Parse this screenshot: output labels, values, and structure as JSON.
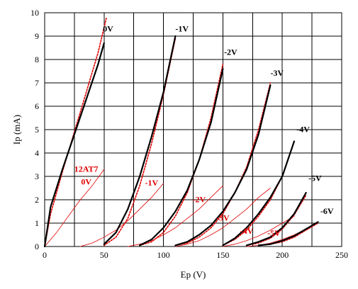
{
  "chart_data": {
    "type": "line",
    "xlabel": "Ep (V)",
    "ylabel": "Ip (mA)",
    "xlim": [
      0,
      250
    ],
    "ylim": [
      0,
      10
    ],
    "xticks": [
      "0",
      "50",
      "100",
      "150",
      "200",
      "250"
    ],
    "yticks": [
      "0",
      "1",
      "2",
      "3",
      "4",
      "5",
      "6",
      "7",
      "8",
      "9",
      "10"
    ],
    "grid": true,
    "colors": {
      "black": "#000000",
      "red": "#e00000",
      "grid": "#000000"
    },
    "series": [
      {
        "name": "0V",
        "color": "#000000",
        "style": "solid",
        "x": [
          0,
          5,
          15,
          25,
          35,
          45,
          50
        ],
        "y": [
          0,
          1.7,
          3.3,
          4.8,
          6.3,
          7.8,
          8.7
        ]
      },
      {
        "name": "-1V",
        "color": "#000000",
        "style": "solid",
        "x": [
          50,
          60,
          70,
          80,
          90,
          100,
          110
        ],
        "y": [
          0.1,
          0.6,
          1.6,
          3.0,
          4.7,
          6.6,
          9.0
        ]
      },
      {
        "name": "-2V",
        "color": "#000000",
        "style": "solid",
        "x": [
          80,
          90,
          100,
          110,
          120,
          130,
          140,
          150
        ],
        "y": [
          0.05,
          0.3,
          0.8,
          1.5,
          2.4,
          3.7,
          5.3,
          7.6
        ]
      },
      {
        "name": "-3V",
        "color": "#000000",
        "style": "solid",
        "x": [
          110,
          120,
          130,
          140,
          150,
          160,
          170,
          180,
          190
        ],
        "y": [
          0.05,
          0.2,
          0.5,
          0.9,
          1.5,
          2.3,
          3.3,
          4.8,
          6.9
        ]
      },
      {
        "name": "-4V",
        "color": "#000000",
        "style": "solid",
        "x": [
          150,
          160,
          170,
          180,
          190,
          200,
          210
        ],
        "y": [
          0.05,
          0.35,
          0.8,
          1.4,
          2.1,
          3.0,
          4.5
        ]
      },
      {
        "name": "-5V",
        "color": "#000000",
        "style": "solid",
        "x": [
          170,
          180,
          190,
          200,
          210,
          220
        ],
        "y": [
          0.05,
          0.2,
          0.4,
          0.8,
          1.4,
          2.3
        ]
      },
      {
        "name": "-6V",
        "color": "#000000",
        "style": "solid",
        "x": [
          180,
          190,
          200,
          210,
          220,
          230
        ],
        "y": [
          0.05,
          0.1,
          0.25,
          0.45,
          0.75,
          1.05
        ]
      },
      {
        "name": "0V",
        "color": "#e00000",
        "style": "dotted",
        "x": [
          0,
          5,
          15,
          25,
          35,
          45,
          52
        ],
        "y": [
          0,
          1.4,
          3.2,
          4.9,
          6.6,
          8.3,
          9.8
        ]
      },
      {
        "name": "-1V",
        "color": "#e00000",
        "style": "dotted",
        "x": [
          50,
          60,
          70,
          80,
          90,
          100,
          110
        ],
        "y": [
          0.05,
          0.4,
          1.2,
          2.6,
          4.4,
          6.5,
          8.9
        ]
      },
      {
        "name": "-2V",
        "color": "#e00000",
        "style": "dotted",
        "x": [
          80,
          90,
          100,
          110,
          120,
          130,
          140,
          150
        ],
        "y": [
          0.05,
          0.2,
          0.6,
          1.3,
          2.3,
          3.7,
          5.5,
          7.8
        ]
      },
      {
        "name": "-3V",
        "color": "#e00000",
        "style": "dotted",
        "x": [
          110,
          120,
          130,
          140,
          150,
          160,
          170,
          180,
          190
        ],
        "y": [
          0.05,
          0.15,
          0.4,
          0.8,
          1.4,
          2.3,
          3.4,
          5.0,
          7.0
        ]
      },
      {
        "name": "-4V",
        "color": "#e00000",
        "style": "dotted",
        "x": [
          150,
          160,
          170,
          180,
          190,
          200,
          210
        ],
        "y": [
          0.05,
          0.3,
          0.7,
          1.3,
          2.0,
          3.0,
          4.5
        ]
      },
      {
        "name": "-5V",
        "color": "#e00000",
        "style": "dotted",
        "x": [
          170,
          180,
          190,
          200,
          210,
          220
        ],
        "y": [
          0.05,
          0.15,
          0.35,
          0.75,
          1.35,
          2.2
        ]
      },
      {
        "name": "-6V",
        "color": "#e00000",
        "style": "dotted",
        "x": [
          180,
          190,
          200,
          210,
          220,
          230
        ],
        "y": [
          0.05,
          0.1,
          0.2,
          0.4,
          0.7,
          1.0
        ]
      },
      {
        "name": "0V",
        "color": "#e00000",
        "style": "thin",
        "x": [
          0,
          10,
          20,
          30,
          40,
          50
        ],
        "y": [
          0,
          0.6,
          1.3,
          2.0,
          2.6,
          3.3
        ]
      },
      {
        "name": "-1V",
        "color": "#e00000",
        "style": "thin",
        "x": [
          30,
          40,
          50,
          60,
          70,
          80,
          90,
          100
        ],
        "y": [
          0,
          0.15,
          0.4,
          0.7,
          1.1,
          1.6,
          2.1,
          2.7
        ]
      },
      {
        "name": "-2V",
        "color": "#e00000",
        "style": "thin",
        "x": [
          70,
          80,
          90,
          100,
          110,
          120,
          130,
          140,
          150
        ],
        "y": [
          0,
          0.1,
          0.25,
          0.5,
          0.8,
          1.2,
          1.6,
          2.1,
          2.6
        ]
      },
      {
        "name": "-3V",
        "color": "#e00000",
        "style": "thin",
        "x": [
          110,
          120,
          130,
          140,
          150,
          160,
          170,
          180,
          190
        ],
        "y": [
          0,
          0.1,
          0.25,
          0.5,
          0.8,
          1.2,
          1.6,
          2.1,
          2.5
        ]
      },
      {
        "name": "-4V",
        "color": "#e00000",
        "style": "thin",
        "x": [
          150,
          160,
          170,
          180,
          190,
          200,
          210
        ],
        "y": [
          0,
          0.1,
          0.25,
          0.45,
          0.7,
          1.0,
          1.3
        ]
      },
      {
        "name": "-5V",
        "color": "#e00000",
        "style": "thin",
        "x": [
          170,
          180,
          190,
          200,
          210,
          220
        ],
        "y": [
          0,
          0.05,
          0.15,
          0.3,
          0.5,
          0.75
        ]
      }
    ],
    "labels": [
      {
        "text": "0V",
        "x": 49,
        "y": 9.2,
        "color": "#000000",
        "anchor": "start"
      },
      {
        "text": "-1V",
        "x": 110,
        "y": 9.2,
        "color": "#000000",
        "anchor": "start"
      },
      {
        "text": "-2V",
        "x": 151,
        "y": 8.2,
        "color": "#000000",
        "anchor": "start"
      },
      {
        "text": "-3V",
        "x": 190,
        "y": 7.3,
        "color": "#000000",
        "anchor": "start"
      },
      {
        "text": "-4V",
        "x": 212,
        "y": 4.9,
        "color": "#000000",
        "anchor": "start"
      },
      {
        "text": "-5V",
        "x": 222,
        "y": 2.8,
        "color": "#000000",
        "anchor": "start"
      },
      {
        "text": "-6V",
        "x": 232,
        "y": 1.4,
        "color": "#000000",
        "anchor": "start"
      },
      {
        "text": "12AT7",
        "x": 35,
        "y": 3.2,
        "color": "#e00000",
        "anchor": "middle"
      },
      {
        "text": "0V",
        "x": 35,
        "y": 2.65,
        "color": "#e00000",
        "anchor": "middle"
      },
      {
        "text": "-1V",
        "x": 90,
        "y": 2.6,
        "color": "#e00000",
        "anchor": "middle"
      },
      {
        "text": "-2V",
        "x": 130,
        "y": 1.9,
        "color": "#e00000",
        "anchor": "middle"
      },
      {
        "text": "-3V",
        "x": 150,
        "y": 1.1,
        "color": "#e00000",
        "anchor": "middle"
      },
      {
        "text": "-4V",
        "x": 170,
        "y": 0.55,
        "color": "#e00000",
        "anchor": "middle"
      },
      {
        "text": "-5V",
        "x": 193,
        "y": 0.45,
        "color": "#e00000",
        "anchor": "middle"
      }
    ]
  }
}
